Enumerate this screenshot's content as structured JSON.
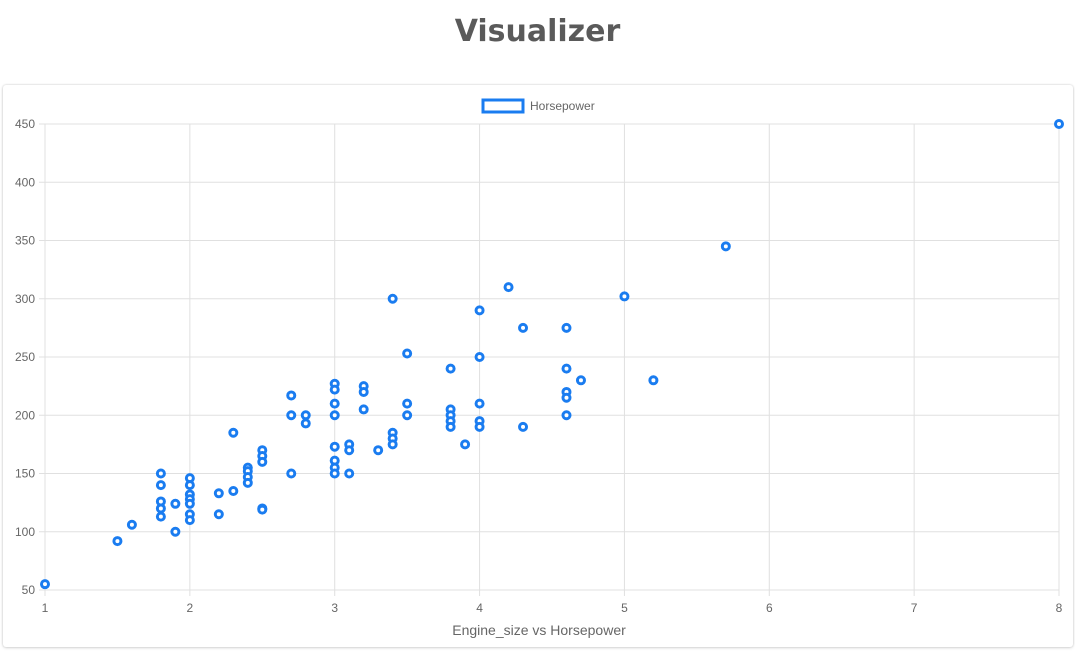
{
  "page": {
    "title": "Visualizer"
  },
  "chart_data": {
    "type": "scatter",
    "title": "",
    "xlabel": "Engine_size vs Horsepower",
    "ylabel": "",
    "xlim": [
      1,
      8
    ],
    "ylim": [
      50,
      450
    ],
    "x_ticks": [
      1,
      2,
      3,
      4,
      5,
      6,
      7,
      8
    ],
    "y_ticks": [
      50,
      100,
      150,
      200,
      250,
      300,
      350,
      400,
      450
    ],
    "grid": true,
    "legend_position": "top-center",
    "color": "#1a7cf0",
    "series": [
      {
        "name": "Horsepower",
        "points": [
          [
            1.0,
            55
          ],
          [
            1.5,
            92
          ],
          [
            1.6,
            106
          ],
          [
            1.8,
            150
          ],
          [
            1.8,
            140
          ],
          [
            1.8,
            126
          ],
          [
            1.8,
            120
          ],
          [
            1.8,
            113
          ],
          [
            1.9,
            124
          ],
          [
            1.9,
            100
          ],
          [
            2.0,
            146
          ],
          [
            2.0,
            140
          ],
          [
            2.0,
            132
          ],
          [
            2.0,
            128
          ],
          [
            2.0,
            124
          ],
          [
            2.0,
            115
          ],
          [
            2.0,
            110
          ],
          [
            2.2,
            133
          ],
          [
            2.2,
            115
          ],
          [
            2.3,
            185
          ],
          [
            2.3,
            135
          ],
          [
            2.4,
            155
          ],
          [
            2.4,
            152
          ],
          [
            2.4,
            147
          ],
          [
            2.4,
            142
          ],
          [
            2.5,
            170
          ],
          [
            2.5,
            165
          ],
          [
            2.5,
            160
          ],
          [
            2.5,
            120
          ],
          [
            2.5,
            119
          ],
          [
            2.7,
            217
          ],
          [
            2.7,
            200
          ],
          [
            2.7,
            150
          ],
          [
            2.8,
            200
          ],
          [
            2.8,
            193
          ],
          [
            3.0,
            227
          ],
          [
            3.0,
            222
          ],
          [
            3.0,
            210
          ],
          [
            3.0,
            200
          ],
          [
            3.0,
            173
          ],
          [
            3.0,
            161
          ],
          [
            3.0,
            155
          ],
          [
            3.0,
            150
          ],
          [
            3.1,
            175
          ],
          [
            3.1,
            170
          ],
          [
            3.1,
            150
          ],
          [
            3.2,
            225
          ],
          [
            3.2,
            220
          ],
          [
            3.2,
            205
          ],
          [
            3.3,
            170
          ],
          [
            3.4,
            300
          ],
          [
            3.4,
            185
          ],
          [
            3.4,
            180
          ],
          [
            3.4,
            175
          ],
          [
            3.5,
            253
          ],
          [
            3.5,
            210
          ],
          [
            3.5,
            200
          ],
          [
            3.8,
            240
          ],
          [
            3.8,
            205
          ],
          [
            3.8,
            200
          ],
          [
            3.8,
            195
          ],
          [
            3.8,
            190
          ],
          [
            3.9,
            175
          ],
          [
            4.0,
            290
          ],
          [
            4.0,
            250
          ],
          [
            4.0,
            210
          ],
          [
            4.0,
            195
          ],
          [
            4.0,
            190
          ],
          [
            4.2,
            310
          ],
          [
            4.3,
            275
          ],
          [
            4.3,
            190
          ],
          [
            4.6,
            275
          ],
          [
            4.6,
            240
          ],
          [
            4.6,
            220
          ],
          [
            4.6,
            215
          ],
          [
            4.6,
            200
          ],
          [
            4.7,
            230
          ],
          [
            5.0,
            302
          ],
          [
            5.2,
            230
          ],
          [
            5.7,
            345
          ],
          [
            8.0,
            450
          ]
        ]
      }
    ]
  }
}
